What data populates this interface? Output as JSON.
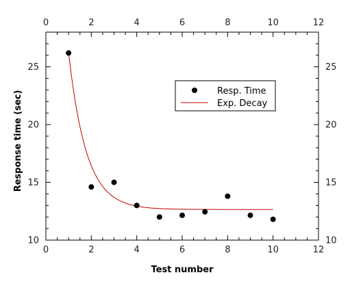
{
  "chart_data": {
    "type": "scatter",
    "title": "",
    "xlabel": "Test number",
    "ylabel": "Response time (sec)",
    "xlim": [
      0,
      12
    ],
    "ylim": [
      10,
      28
    ],
    "x_ticks": [
      0,
      2,
      4,
      6,
      8,
      10,
      12
    ],
    "y_ticks": [
      10,
      15,
      20,
      25
    ],
    "x_ticks_mirrored_top": true,
    "y_ticks_mirrored_right": true,
    "grid": false,
    "legend_position": "upper-right",
    "series": [
      {
        "name": "Resp. Time",
        "kind": "scatter",
        "marker": "circle",
        "color": "#000000",
        "x": [
          1,
          2,
          3,
          4,
          5,
          6,
          7,
          8,
          9,
          10
        ],
        "y": [
          26.2,
          14.6,
          15.0,
          13.0,
          12.0,
          12.15,
          12.45,
          13.8,
          12.15,
          11.8
        ]
      },
      {
        "name": "Exp. Decay",
        "kind": "line",
        "color": "#c00000",
        "model": "y = c + a * exp(-k * (x - 1))",
        "params": {
          "a": 13.6,
          "c": 12.65,
          "k": 1.28
        },
        "x_range": [
          1,
          10
        ]
      }
    ]
  }
}
